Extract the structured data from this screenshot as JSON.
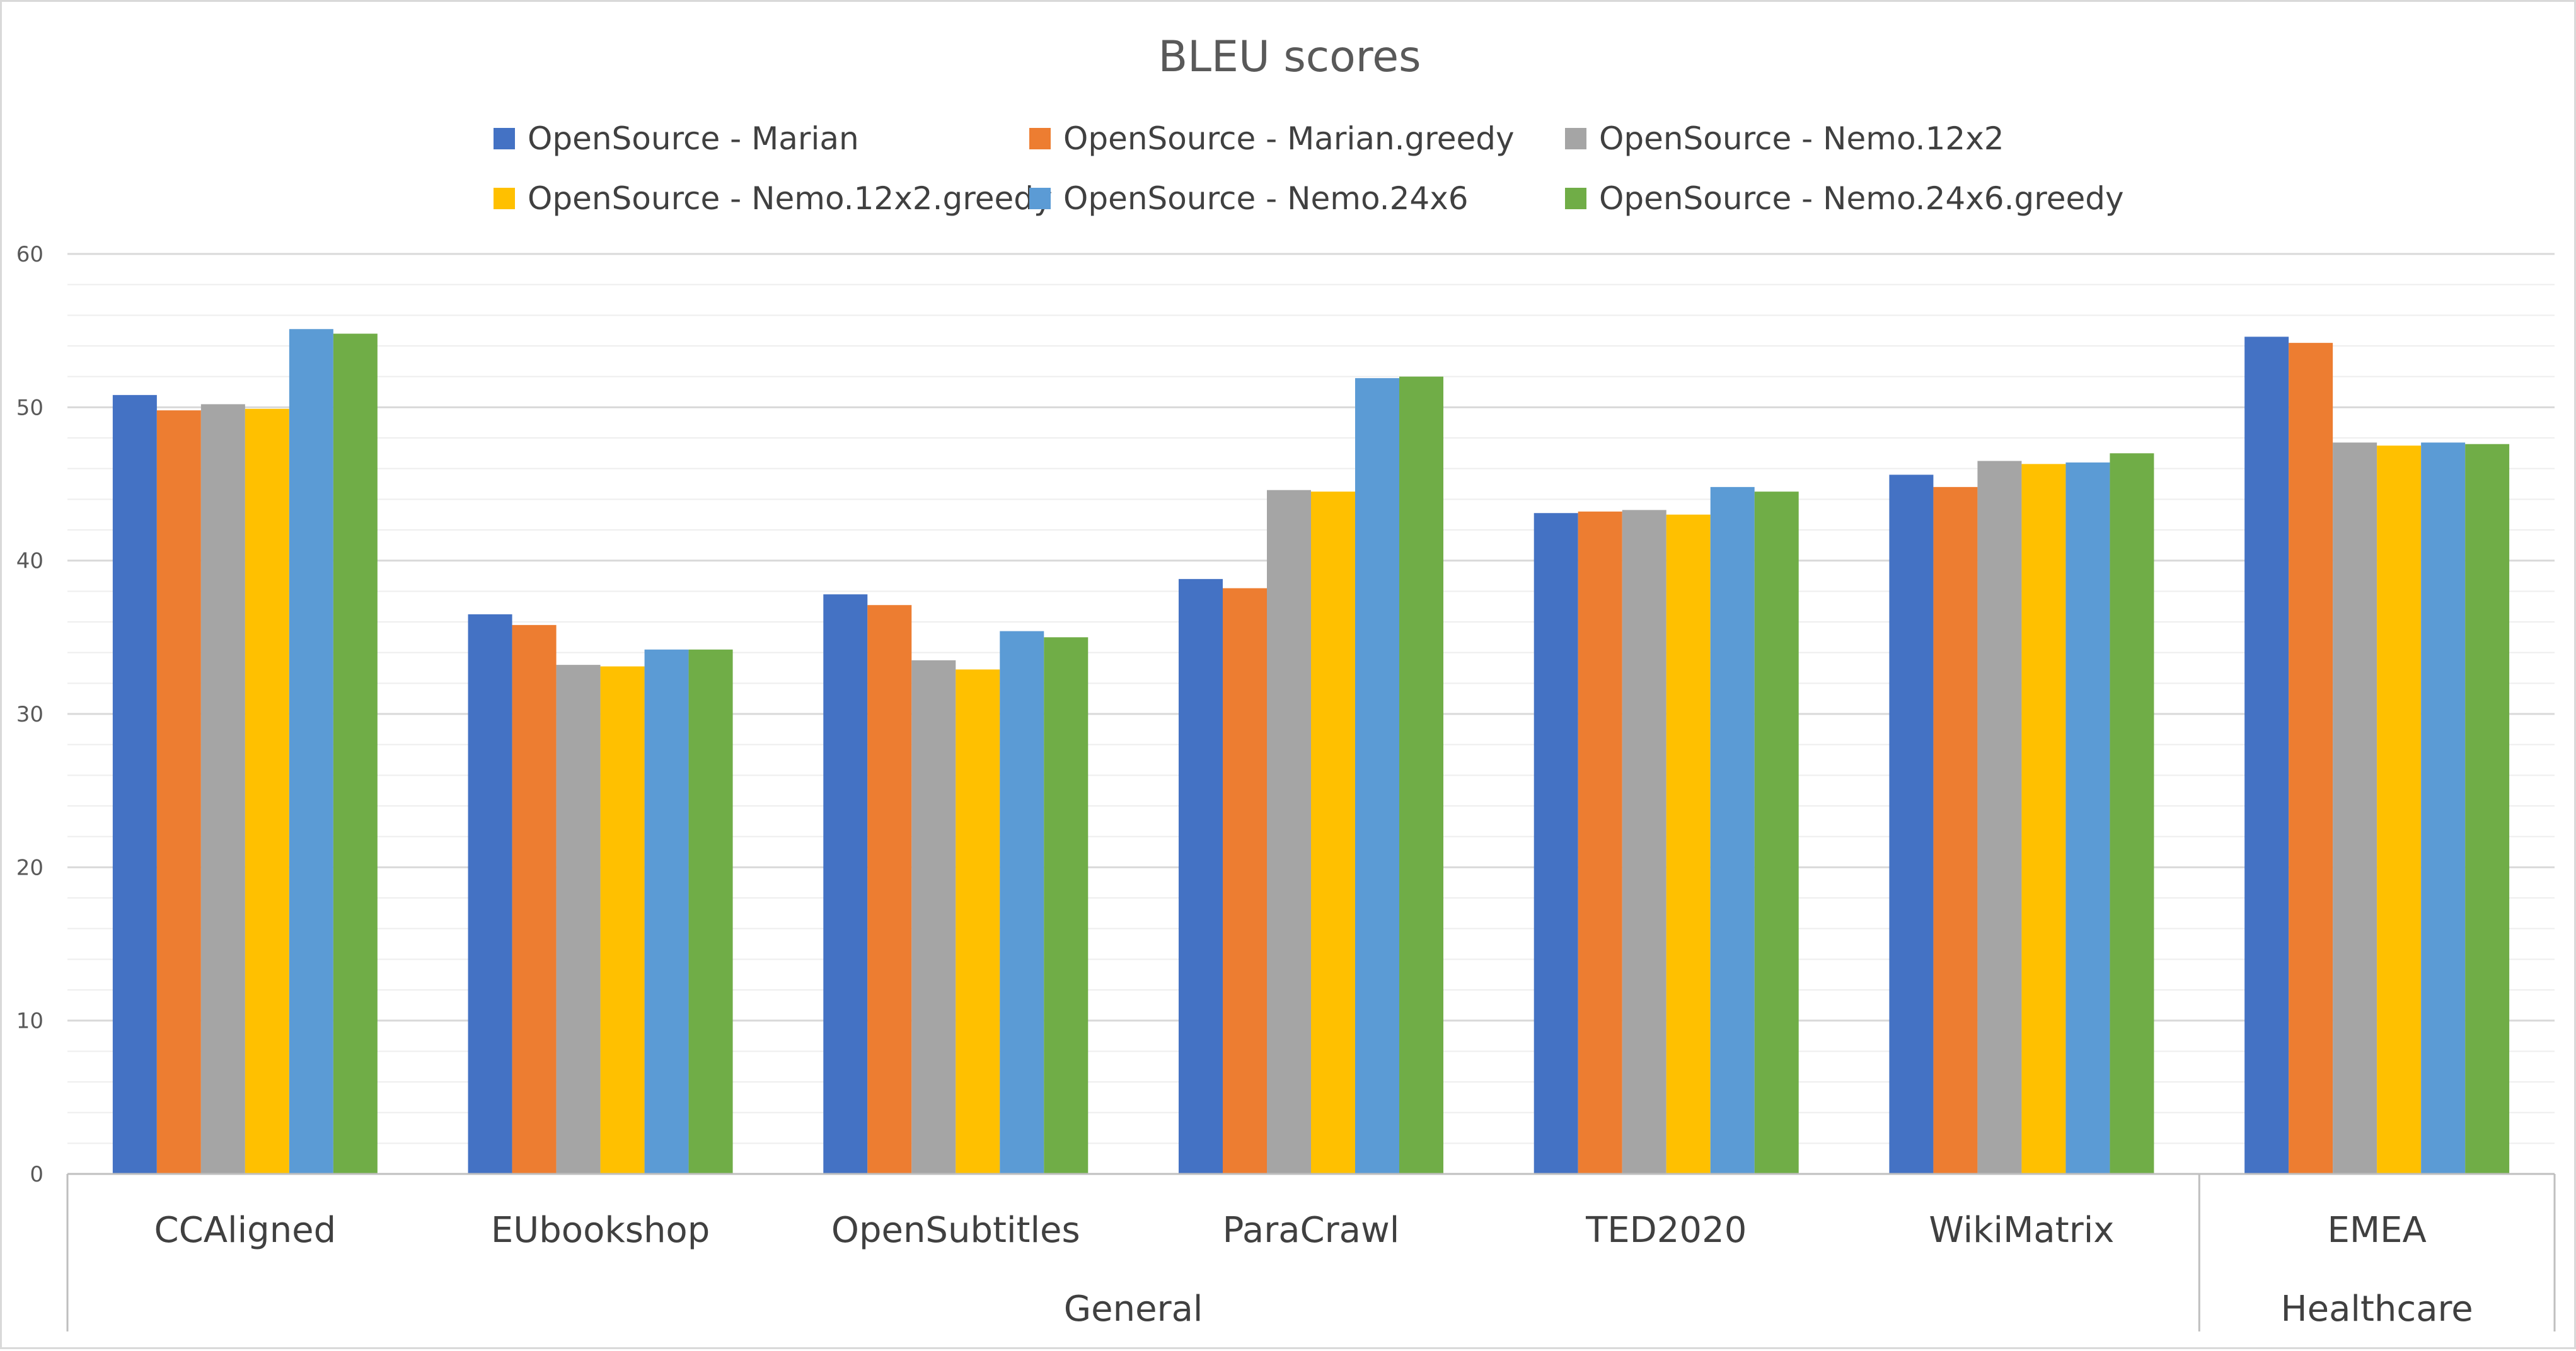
{
  "chart_data": {
    "type": "bar",
    "title": "BLEU scores",
    "xlabel": "",
    "ylabel": "",
    "ylim": [
      0,
      60
    ],
    "yticks": [
      0,
      10,
      20,
      30,
      40,
      50,
      60
    ],
    "grid": true,
    "legend_position": "top",
    "categories": [
      "CCAligned",
      "EUbookshop",
      "OpenSubtitles",
      "ParaCrawl",
      "TED2020",
      "WikiMatrix",
      "EMEA"
    ],
    "groups": [
      {
        "label": "General",
        "categories": [
          "CCAligned",
          "EUbookshop",
          "OpenSubtitles",
          "ParaCrawl",
          "TED2020",
          "WikiMatrix"
        ]
      },
      {
        "label": "Healthcare",
        "categories": [
          "EMEA"
        ]
      }
    ],
    "series": [
      {
        "name": "OpenSource - Marian",
        "color": "#4472c4",
        "values": [
          50.8,
          36.5,
          37.8,
          38.8,
          43.1,
          45.6,
          54.6
        ]
      },
      {
        "name": "OpenSource - Marian.greedy",
        "color": "#ed7d31",
        "values": [
          49.8,
          35.8,
          37.1,
          38.2,
          43.2,
          44.8,
          54.2
        ]
      },
      {
        "name": "OpenSource - Nemo.12x2",
        "color": "#a5a5a5",
        "values": [
          50.2,
          33.2,
          33.5,
          44.6,
          43.3,
          46.5,
          47.7
        ]
      },
      {
        "name": "OpenSource - Nemo.12x2.greedy",
        "color": "#ffc000",
        "values": [
          49.9,
          33.1,
          32.9,
          44.5,
          43.0,
          46.3,
          47.5
        ]
      },
      {
        "name": "OpenSource - Nemo.24x6",
        "color": "#5b9bd5",
        "values": [
          55.1,
          34.2,
          35.4,
          51.9,
          44.8,
          46.4,
          47.7
        ]
      },
      {
        "name": "OpenSource - Nemo.24x6.greedy",
        "color": "#70ad47",
        "values": [
          54.8,
          34.2,
          35.0,
          52.0,
          44.5,
          47.0,
          47.6
        ]
      }
    ],
    "colors": {
      "grid": "#d9d9d9",
      "minor_grid": "#eeeeee",
      "axis": "#bfbfbf"
    }
  }
}
